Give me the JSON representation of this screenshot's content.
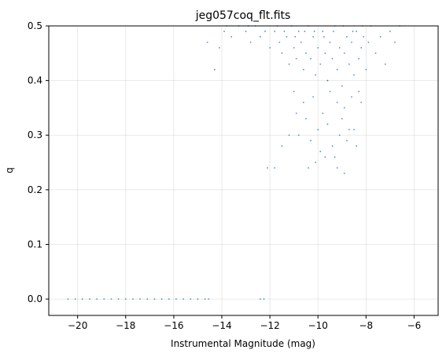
{
  "chart_data": {
    "type": "scatter",
    "title": "jeg057coq_flt.fits",
    "xlabel": "Instrumental Magnitude (mag)",
    "ylabel": "q",
    "xlim": [
      -21.2,
      -5.0
    ],
    "ylim": [
      -0.03,
      0.5
    ],
    "x_ticks": [
      -20,
      -18,
      -16,
      -14,
      -12,
      -10,
      -8,
      -6
    ],
    "x_tick_labels": [
      "−20",
      "−18",
      "−16",
      "−14",
      "−12",
      "−10",
      "−8",
      "−6"
    ],
    "y_ticks": [
      0.0,
      0.1,
      0.2,
      0.3,
      0.4,
      0.5
    ],
    "y_tick_labels": [
      "0.0",
      "0.1",
      "0.2",
      "0.3",
      "0.4",
      "0.5"
    ],
    "grid": true,
    "legend": false,
    "marker_color": "#1f77b4",
    "series": [
      {
        "points": [
          [
            -20.4,
            0.0
          ],
          [
            -20.1,
            0.0
          ],
          [
            -19.8,
            0.0
          ],
          [
            -19.5,
            0.0
          ],
          [
            -19.2,
            0.0
          ],
          [
            -18.9,
            0.0
          ],
          [
            -18.6,
            0.0
          ],
          [
            -18.3,
            0.0
          ],
          [
            -18.0,
            0.0
          ],
          [
            -17.7,
            0.0
          ],
          [
            -17.4,
            0.0
          ],
          [
            -17.1,
            0.0
          ],
          [
            -16.8,
            0.0
          ],
          [
            -16.5,
            0.0
          ],
          [
            -16.2,
            0.0
          ],
          [
            -15.9,
            0.0
          ],
          [
            -15.6,
            0.0
          ],
          [
            -15.3,
            0.0
          ],
          [
            -15.0,
            0.0
          ],
          [
            -14.7,
            0.0
          ],
          [
            -14.55,
            0.0
          ],
          [
            -12.4,
            0.0
          ],
          [
            -12.25,
            0.0
          ],
          [
            -14.6,
            0.47
          ],
          [
            -14.3,
            0.42
          ],
          [
            -14.1,
            0.46
          ],
          [
            -13.9,
            0.49
          ],
          [
            -13.6,
            0.48
          ],
          [
            -13.3,
            0.5
          ],
          [
            -13.0,
            0.49
          ],
          [
            -12.8,
            0.47
          ],
          [
            -12.6,
            0.5
          ],
          [
            -12.4,
            0.48
          ],
          [
            -12.2,
            0.49
          ],
          [
            -12.0,
            0.46
          ],
          [
            -11.8,
            0.49
          ],
          [
            -11.6,
            0.47
          ],
          [
            -11.5,
            0.45
          ],
          [
            -11.3,
            0.48
          ],
          [
            -11.2,
            0.43
          ],
          [
            -11.1,
            0.5
          ],
          [
            -11.0,
            0.46
          ],
          [
            -10.9,
            0.44
          ],
          [
            -10.8,
            0.49
          ],
          [
            -10.7,
            0.47
          ],
          [
            -10.6,
            0.42
          ],
          [
            -10.5,
            0.45
          ],
          [
            -10.4,
            0.5
          ],
          [
            -10.3,
            0.44
          ],
          [
            -10.2,
            0.48
          ],
          [
            -10.1,
            0.41
          ],
          [
            -10.0,
            0.46
          ],
          [
            -9.9,
            0.43
          ],
          [
            -9.8,
            0.49
          ],
          [
            -9.7,
            0.45
          ],
          [
            -9.6,
            0.4
          ],
          [
            -9.5,
            0.47
          ],
          [
            -9.4,
            0.44
          ],
          [
            -9.3,
            0.5
          ],
          [
            -9.2,
            0.42
          ],
          [
            -9.1,
            0.46
          ],
          [
            -9.0,
            0.39
          ],
          [
            -8.9,
            0.45
          ],
          [
            -8.8,
            0.48
          ],
          [
            -8.7,
            0.43
          ],
          [
            -8.6,
            0.47
          ],
          [
            -8.5,
            0.41
          ],
          [
            -8.4,
            0.49
          ],
          [
            -8.3,
            0.44
          ],
          [
            -8.2,
            0.46
          ],
          [
            -8.1,
            0.48
          ],
          [
            -8.0,
            0.42
          ],
          [
            -7.9,
            0.47
          ],
          [
            -7.8,
            0.5
          ],
          [
            -7.6,
            0.45
          ],
          [
            -7.4,
            0.48
          ],
          [
            -7.2,
            0.43
          ],
          [
            -7.0,
            0.49
          ],
          [
            -6.8,
            0.47
          ],
          [
            -6.6,
            0.5
          ],
          [
            -11.4,
            0.49
          ],
          [
            -10.95,
            0.48
          ],
          [
            -10.55,
            0.49
          ],
          [
            -10.15,
            0.49
          ],
          [
            -9.75,
            0.48
          ],
          [
            -9.35,
            0.49
          ],
          [
            -8.95,
            0.5
          ],
          [
            -8.55,
            0.49
          ],
          [
            -8.15,
            0.5
          ],
          [
            -11.7,
            0.5
          ],
          [
            -12.9,
            0.5
          ],
          [
            -13.8,
            0.5
          ],
          [
            -11.0,
            0.38
          ],
          [
            -10.6,
            0.36
          ],
          [
            -10.2,
            0.37
          ],
          [
            -9.8,
            0.34
          ],
          [
            -9.5,
            0.38
          ],
          [
            -9.2,
            0.36
          ],
          [
            -8.9,
            0.35
          ],
          [
            -8.6,
            0.37
          ],
          [
            -8.3,
            0.38
          ],
          [
            -10.5,
            0.33
          ],
          [
            -10.0,
            0.31
          ],
          [
            -9.6,
            0.32
          ],
          [
            -9.0,
            0.33
          ],
          [
            -8.7,
            0.31
          ],
          [
            -10.8,
            0.3
          ],
          [
            -10.3,
            0.29
          ],
          [
            -9.9,
            0.27
          ],
          [
            -9.4,
            0.28
          ],
          [
            -9.1,
            0.3
          ],
          [
            -8.8,
            0.29
          ],
          [
            -8.5,
            0.31
          ],
          [
            -10.1,
            0.25
          ],
          [
            -9.7,
            0.26
          ],
          [
            -9.2,
            0.24
          ],
          [
            -8.9,
            0.23
          ],
          [
            -11.5,
            0.28
          ],
          [
            -11.2,
            0.3
          ],
          [
            -11.8,
            0.24
          ],
          [
            -12.1,
            0.24
          ],
          [
            -10.4,
            0.24
          ],
          [
            -9.3,
            0.26
          ],
          [
            -8.4,
            0.28
          ],
          [
            -10.9,
            0.34
          ],
          [
            -9.6,
            0.4
          ],
          [
            -8.2,
            0.36
          ]
        ]
      }
    ]
  }
}
